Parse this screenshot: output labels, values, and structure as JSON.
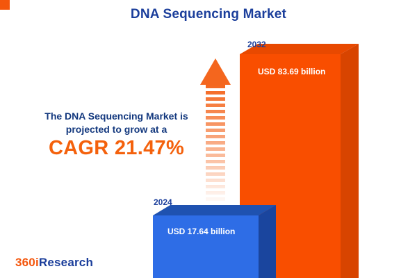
{
  "title": "DNA Sequencing Market",
  "annotation": {
    "line1": "The DNA Sequencing Market is",
    "line2": "projected to grow at a",
    "cagr": "CAGR 21.47%"
  },
  "bars": {
    "y2024": {
      "year": "2024",
      "value_label": "USD 17.64 billion",
      "color": "#2e6de6"
    },
    "y2032": {
      "year": "2032",
      "value_label": "USD 83.69 billion",
      "color": "#f94e00"
    }
  },
  "logo": {
    "prefix": "360i",
    "suffix": "Research"
  },
  "colors": {
    "accent_orange": "#f4560c",
    "navy": "#1b3e9b",
    "cagr_orange": "#f4610c",
    "bar_blue_front": "#2e6de6",
    "bar_blue_side": "#1a459e",
    "bar_orange_front": "#f94e00",
    "bar_orange_side": "#d84400",
    "arrow_orange": "#f4661e"
  },
  "chart_data": {
    "type": "bar",
    "title": "DNA Sequencing Market",
    "categories": [
      "2024",
      "2032"
    ],
    "values": [
      17.64,
      83.69
    ],
    "unit": "USD billion",
    "value_labels": [
      "USD 17.64 billion",
      "USD 83.69 billion"
    ],
    "bar_colors": [
      "#2e6de6",
      "#f94e00"
    ],
    "annotation": "The DNA Sequencing Market is projected to grow at a CAGR 21.47%",
    "cagr_percent": 21.47,
    "style": "3d-infographic",
    "grid": false,
    "legend": "none"
  }
}
